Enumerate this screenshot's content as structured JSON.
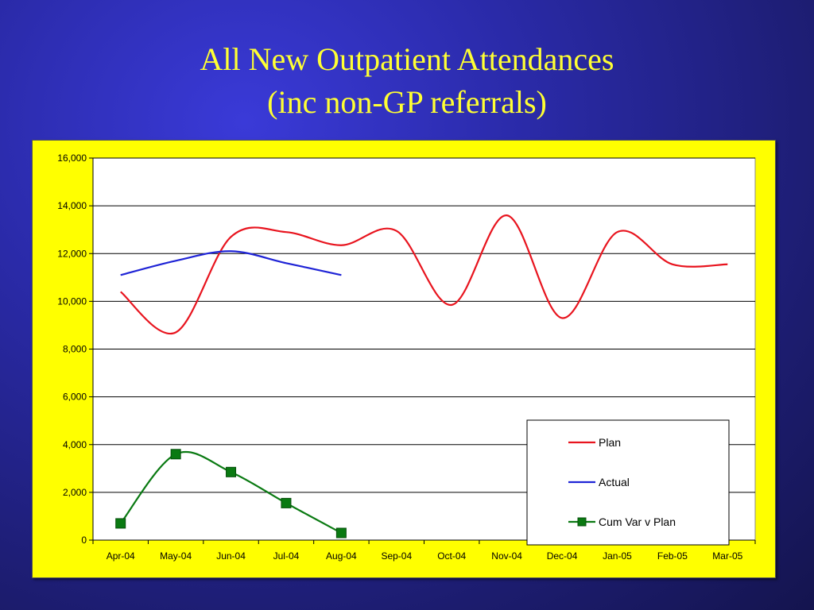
{
  "slide": {
    "title_line1": "All New Outpatient Attendances",
    "title_line2": "(inc non-GP referrals)"
  },
  "colors": {
    "background": "#2a2aa8",
    "title": "#ffff33",
    "chart_frame": "#ffff00",
    "plot_area": "#ffffff",
    "plan": "#e8141e",
    "actual": "#1f24d6",
    "cum_var": "#0a7a12"
  },
  "chart_data": {
    "type": "line",
    "title": "",
    "xlabel": "",
    "ylabel": "",
    "categories": [
      "Apr-04",
      "May-04",
      "Jun-04",
      "Jul-04",
      "Aug-04",
      "Sep-04",
      "Oct-04",
      "Nov-04",
      "Dec-04",
      "Jan-05",
      "Feb-05",
      "Mar-05"
    ],
    "ylim": [
      0,
      16000
    ],
    "yticks": [
      0,
      2000,
      4000,
      6000,
      8000,
      10000,
      12000,
      14000,
      16000
    ],
    "ytick_labels": [
      "0",
      "2,000",
      "4,000",
      "6,000",
      "8,000",
      "10,000",
      "12,000",
      "14,000",
      "16,000"
    ],
    "grid": true,
    "legend_position": "bottom-right",
    "series": [
      {
        "name": "Plan",
        "color": "#e8141e",
        "marker": "none",
        "values": [
          10400,
          8700,
          12700,
          12900,
          12350,
          12950,
          9850,
          13600,
          9300,
          12900,
          11550,
          11550
        ]
      },
      {
        "name": "Actual",
        "color": "#1f24d6",
        "marker": "none",
        "values": [
          11100,
          11700,
          12100,
          11600,
          11100,
          null,
          null,
          null,
          null,
          null,
          null,
          null
        ]
      },
      {
        "name": "Cum Var v Plan",
        "color": "#0a7a12",
        "marker": "square",
        "values": [
          700,
          3600,
          2850,
          1550,
          300,
          null,
          null,
          null,
          null,
          null,
          null,
          null
        ]
      }
    ]
  }
}
